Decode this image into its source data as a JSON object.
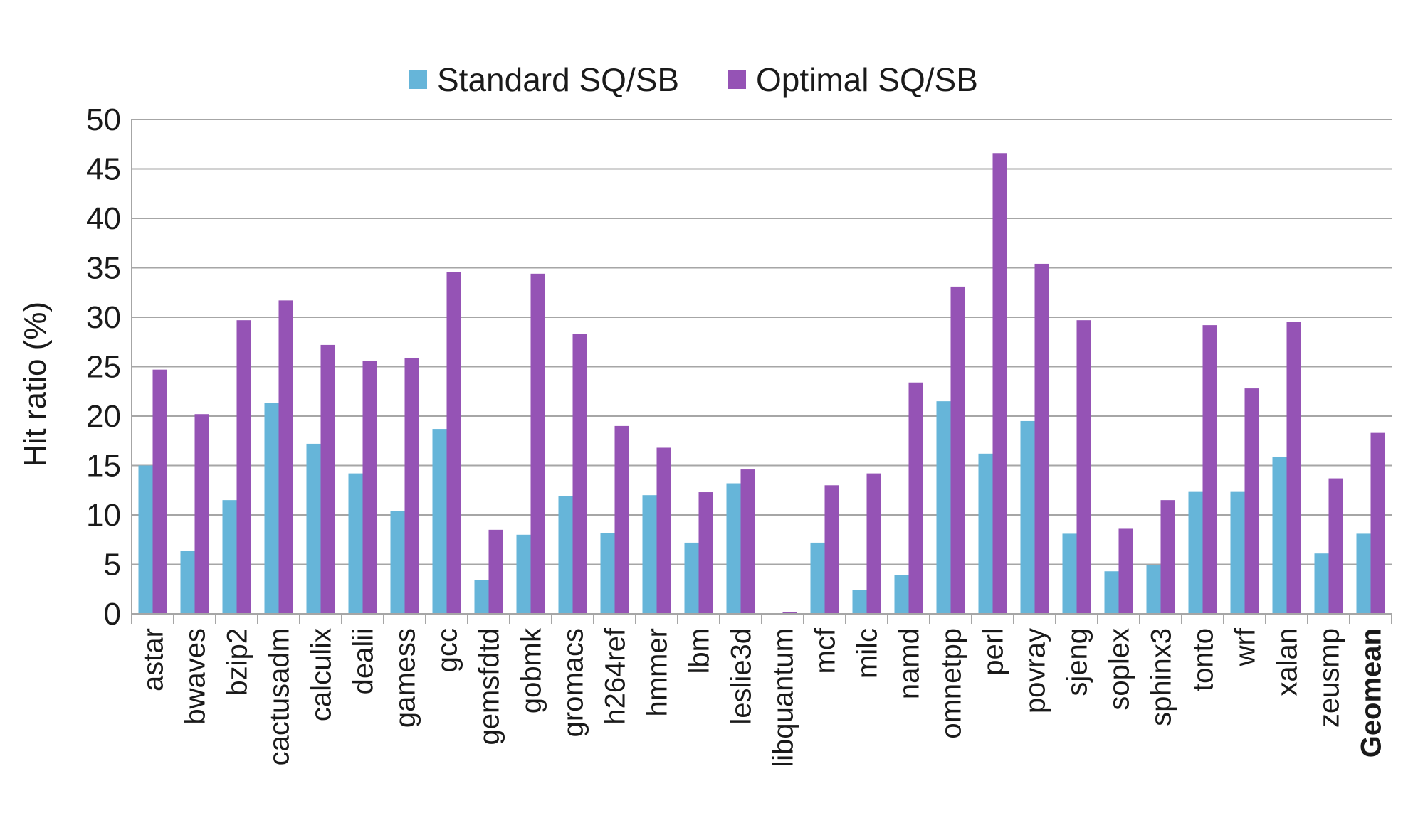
{
  "chart_data": {
    "type": "bar",
    "ylabel": "Hit ratio (%)",
    "ylim": [
      0,
      50
    ],
    "yticks": [
      0,
      5,
      10,
      15,
      20,
      25,
      30,
      35,
      40,
      45,
      50
    ],
    "grid": true,
    "legend_position": "top",
    "categories": [
      "astar",
      "bwaves",
      "bzip2",
      "cactusadm",
      "calculix",
      "dealii",
      "gamess",
      "gcc",
      "gemsfdtd",
      "gobmk",
      "gromacs",
      "h264ref",
      "hmmer",
      "lbm",
      "leslie3d",
      "libquantum",
      "mcf",
      "milc",
      "namd",
      "omnetpp",
      "perl",
      "povray",
      "sjeng",
      "soplex",
      "sphinx3",
      "tonto",
      "wrf",
      "xalan",
      "zeusmp",
      "Geomean"
    ],
    "bold_categories": [
      "Geomean"
    ],
    "series": [
      {
        "name": "Standard SQ/SB",
        "color": "#66b5d9",
        "values": [
          15.0,
          6.4,
          11.5,
          21.3,
          17.2,
          14.2,
          10.4,
          18.7,
          3.4,
          8.0,
          11.9,
          8.2,
          12.0,
          7.2,
          13.2,
          0.0,
          7.2,
          2.4,
          3.9,
          21.5,
          16.2,
          19.5,
          8.1,
          4.3,
          4.9,
          12.4,
          12.4,
          15.9,
          6.1,
          8.1
        ]
      },
      {
        "name": "Optimal SQ/SB",
        "color": "#9553b5",
        "values": [
          24.7,
          20.2,
          29.7,
          31.7,
          27.2,
          25.6,
          25.9,
          34.6,
          8.5,
          34.4,
          28.3,
          19.0,
          16.8,
          12.3,
          14.6,
          0.2,
          13.0,
          14.2,
          23.4,
          33.1,
          46.6,
          35.4,
          29.7,
          8.6,
          11.5,
          29.2,
          22.8,
          29.5,
          13.7,
          18.3
        ]
      }
    ]
  }
}
